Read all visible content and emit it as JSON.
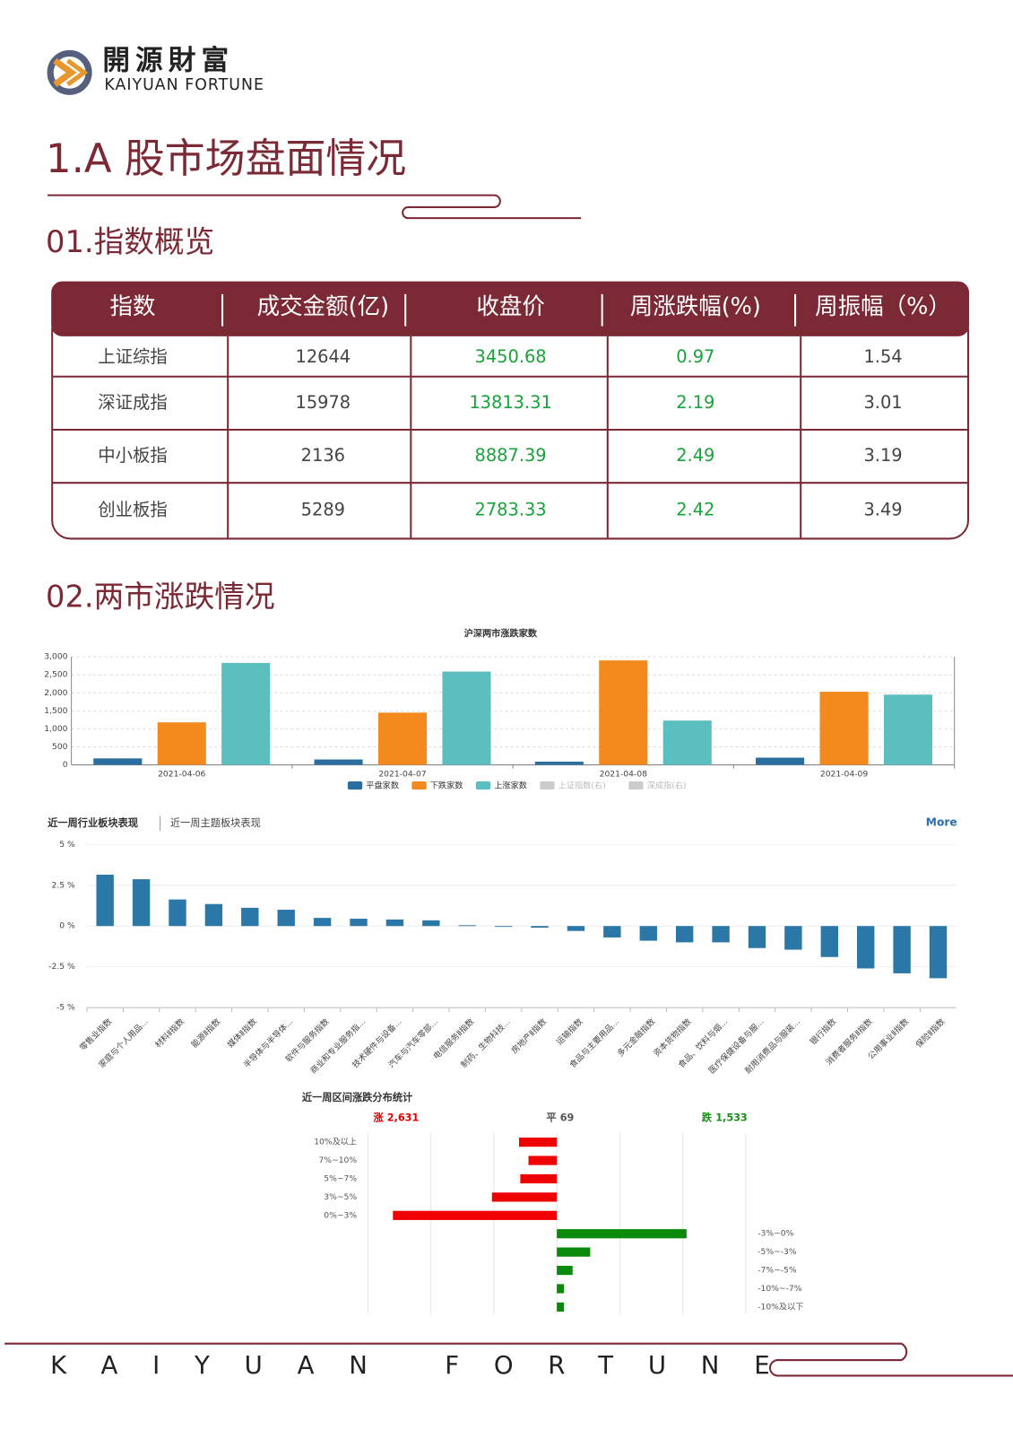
{
  "header": {
    "logo_cn": "開源財富",
    "logo_en": "KAIYUAN FORTUNE"
  },
  "title": "1.A 股市场盘面情况",
  "sections": [
    "01.指数概览",
    "02.两市涨跌情况"
  ],
  "table": {
    "header": [
      "指数",
      "成交金额(亿)",
      "收盘价",
      "周涨跌幅(%)",
      "周振幅（%）"
    ],
    "rows": [
      [
        "上证综指",
        12644,
        3450.68,
        0.97,
        1.54
      ],
      [
        "深证成指",
        15978,
        13813.31,
        2.19,
        3.01
      ],
      [
        "中小板指",
        2136,
        8887.39,
        2.49,
        3.19
      ],
      [
        "创业板指",
        5289,
        2783.33,
        2.42,
        3.49
      ]
    ],
    "column_colors": [
      "#444444",
      "#444444",
      "#1aa33a",
      "#1aa33a",
      "#444444"
    ]
  },
  "chart_data": [
    {
      "type": "bar",
      "title": "沪深两市涨跌家数",
      "categories": [
        "2021-04-06",
        "2021-04-07",
        "2021-04-08",
        "2021-04-09"
      ],
      "series": [
        {
          "name": "平盘家数",
          "color": "#2a6fa0",
          "values": [
            180,
            150,
            90,
            200
          ]
        },
        {
          "name": "下跌家数",
          "color": "#f28a1e",
          "values": [
            1180,
            1450,
            2900,
            2030
          ]
        },
        {
          "name": "上涨家数",
          "color": "#5bbfbf",
          "values": [
            2830,
            2590,
            1230,
            1950
          ]
        },
        {
          "name": "上证指数(右)",
          "color": "#cccccc",
          "hidden": true,
          "values": [
            null,
            null,
            null,
            null
          ]
        },
        {
          "name": "深成指(右)",
          "color": "#cccccc",
          "hidden": true,
          "values": [
            null,
            null,
            null,
            null
          ]
        }
      ],
      "ylim": [
        0,
        3000
      ],
      "yticks": [
        0,
        500,
        {
          "value": 1000,
          "label": "1,000"
        },
        {
          "value": 1500,
          "label": "1,500"
        },
        {
          "value": 2000,
          "label": "2,000"
        },
        {
          "value": 2500,
          "label": "2,500"
        },
        {
          "value": 3000,
          "label": "3,000"
        }
      ],
      "grid": true
    },
    {
      "type": "bar",
      "tabs": [
        "近一周行业板块表现",
        "近一周主题板块表现"
      ],
      "link": "More",
      "categories": [
        "零售业指数",
        "家庭与个人用品...",
        "材料Ⅱ指数",
        "能源Ⅱ指数",
        "媒体Ⅱ指数",
        "半导体与半导体...",
        "软件与服务指数",
        "商业和专业服务指...",
        "技术硬件与设备...",
        "汽车与汽车零部...",
        "电信服务Ⅱ指数",
        "制药、生物科技...",
        "房地产Ⅱ指数",
        "运输指数",
        "食品与主要用品...",
        "多元金融指数",
        "资本货物指数",
        "食品、饮料与烟...",
        "医疗保健设备与服...",
        "耐用消费品与服装...",
        "银行指数",
        "消费者服务Ⅱ指数",
        "公用事业Ⅱ指数",
        "保险Ⅱ指数"
      ],
      "values": [
        3.15,
        2.87,
        1.63,
        1.35,
        1.12,
        1.0,
        0.5,
        0.45,
        0.4,
        0.35,
        0.05,
        -0.05,
        -0.1,
        -0.3,
        -0.7,
        -0.9,
        -1.0,
        -1.0,
        -1.35,
        -1.45,
        -1.9,
        -2.6,
        -2.9,
        -3.2
      ],
      "color": "#2a77a8",
      "ylim": [
        -5,
        5
      ],
      "yticks": [
        {
          "value": 5,
          "label": "5 %"
        },
        {
          "value": 2.5,
          "label": "2.5 %"
        },
        {
          "value": 0,
          "label": "0 %"
        },
        {
          "value": -2.5,
          "label": "-2.5 %"
        },
        {
          "value": -5,
          "label": "-5 %"
        }
      ],
      "grid": true
    },
    {
      "type": "butterfly",
      "title": "近一周区间涨跌分布统计",
      "summary": [
        {
          "name": "涨",
          "value": 2631,
          "value_label": "2,631",
          "color": "#e60000"
        },
        {
          "name": "平",
          "value": 69,
          "color": "#555555"
        },
        {
          "name": "跌",
          "value": 1533,
          "value_label": "1,533",
          "color": "#1a8f1a"
        }
      ],
      "series": [
        {
          "side": "left",
          "color": "#f00000",
          "categories": [
            "10%及以上",
            "7%~10%",
            "5%~7%",
            "3%~5%",
            "0%~3%"
          ],
          "values": [
            300,
            225,
            290,
            515,
            1301
          ]
        },
        {
          "side": "right",
          "color": "#0a8a0a",
          "categories": [
            "-3%~0%",
            "-5%~-3%",
            "-7%~-5%",
            "-10%~-7%",
            "-10%及以下"
          ],
          "values": [
            1030,
            265,
            125,
            57,
            56
          ]
        }
      ],
      "xlim": [
        -1500,
        1500
      ],
      "xticks": [
        -1500,
        -1000,
        -500,
        0,
        500,
        1000,
        1500
      ],
      "grid": true
    }
  ],
  "footer": "KAIYUAN FORTUNE"
}
